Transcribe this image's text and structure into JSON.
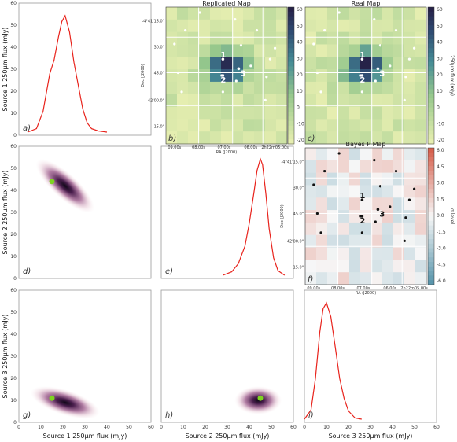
{
  "figure": {
    "colors": {
      "kde_line": "#e8221b",
      "green_dot": "#7ed321",
      "map_dark": "#2e2d4f",
      "map_light": "#e6eeb0"
    }
  },
  "chart_data": [
    {
      "type": "line",
      "panel": "a)",
      "ylabel": "Source 1 250μm flux  (mJy)",
      "xlim": [
        0,
        60
      ],
      "x": [
        4,
        8,
        11,
        14,
        16,
        18,
        19.5,
        21,
        23,
        25,
        27,
        29,
        31,
        33,
        36,
        40
      ],
      "values": [
        0,
        0.03,
        0.18,
        0.5,
        0.62,
        0.82,
        0.95,
        1.0,
        0.86,
        0.6,
        0.4,
        0.2,
        0.08,
        0.03,
        0.01,
        0
      ]
    },
    {
      "type": "heatmap",
      "panel": "b)",
      "title": "Replicated Map",
      "xlabel": "RA (J2000)",
      "ylabel": "Dec (J2000)",
      "xticks": [
        "09.00s",
        "08.00s",
        "07.00s",
        "06.00s",
        "2h22m05.00s"
      ],
      "yticks": [
        "-4°41'15.0\"",
        "30.0\"",
        "45.0\"",
        "42'00.0\"",
        "15.0\""
      ],
      "source_labels": [
        "1",
        "2",
        "3"
      ],
      "colorbar": {
        "label": "250μm flux  (mJy)",
        "ticks": [
          "60",
          "50",
          "40",
          "30",
          "20",
          "10",
          "0",
          "-10",
          "-20"
        ]
      }
    },
    {
      "type": "heatmap",
      "panel": "c)",
      "title": "Real Map",
      "source_labels": [
        "1",
        "2",
        "3"
      ],
      "colorbar": {
        "label": "250μm flux  (mJy)",
        "ticks": [
          "60",
          "50",
          "40",
          "30",
          "20",
          "10",
          "0",
          "-10",
          "-20"
        ]
      }
    },
    {
      "type": "scatter",
      "panel": "d)",
      "ylabel": "Source 2 250μm flux  (mJy)",
      "xlim": [
        0,
        60
      ],
      "ylim": [
        0,
        60
      ],
      "yticks": [
        0,
        10,
        20,
        30,
        40,
        50,
        60
      ],
      "density_center": [
        21,
        42
      ],
      "true_value": [
        15,
        44
      ]
    },
    {
      "type": "line",
      "panel": "e)",
      "xlim": [
        0,
        60
      ],
      "x": [
        28,
        32,
        35,
        38,
        40,
        42,
        43.5,
        45,
        46,
        47.5,
        49,
        51,
        53,
        56
      ],
      "values": [
        0,
        0.03,
        0.1,
        0.25,
        0.45,
        0.7,
        0.9,
        1.0,
        0.95,
        0.7,
        0.4,
        0.15,
        0.04,
        0
      ]
    },
    {
      "type": "heatmap",
      "panel": "f)",
      "title": "Bayes P Map",
      "xlabel": "RA (J2000)",
      "ylabel": "Dec (J2000)",
      "xticks": [
        "09.00s",
        "08.00s",
        "07.00s",
        "06.00s",
        "2h22m05.00s"
      ],
      "yticks": [
        "-4°41'15.0\"",
        "30.0\"",
        "45.0\"",
        "42'00.0\"",
        "15.0\""
      ],
      "source_labels": [
        "1",
        "2",
        "3"
      ],
      "colorbar": {
        "label": "σ level",
        "ticks": [
          "6.0",
          "4.5",
          "3.0",
          "1.5",
          "0.0",
          "-1.5",
          "-3.0",
          "-4.5",
          "-6.0"
        ]
      }
    },
    {
      "type": "scatter",
      "panel": "g)",
      "ylabel": "Source 3 250μm flux  (mJy)",
      "xlabel": "Source 1 250μm flux  (mJy)",
      "xlim": [
        0,
        60
      ],
      "ylim": [
        0,
        60
      ],
      "xticks": [
        0,
        10,
        20,
        30,
        40,
        50,
        60
      ],
      "yticks": [
        0,
        10,
        20,
        30,
        40,
        50,
        60
      ],
      "density_center": [
        21,
        9
      ],
      "true_value": [
        15,
        11
      ]
    },
    {
      "type": "scatter",
      "panel": "h)",
      "xlabel": "Source 2 250μm flux  (mJy)",
      "xlim": [
        0,
        60
      ],
      "xticks": [
        0,
        10,
        20,
        30,
        40,
        50,
        60
      ],
      "density_center": [
        44,
        10
      ],
      "true_value": [
        45,
        11
      ]
    },
    {
      "type": "line",
      "panel": "i)",
      "xlabel": "Source 3 250μm flux  (mJy)",
      "xlim": [
        0,
        60
      ],
      "xticks": [
        0,
        10,
        20,
        30,
        40,
        50,
        60
      ],
      "x": [
        0,
        3,
        5,
        7,
        8.5,
        10,
        12,
        14,
        16,
        18,
        20,
        23,
        26
      ],
      "values": [
        0,
        0.08,
        0.35,
        0.75,
        0.95,
        1.0,
        0.88,
        0.62,
        0.35,
        0.18,
        0.07,
        0.01,
        0
      ]
    }
  ]
}
